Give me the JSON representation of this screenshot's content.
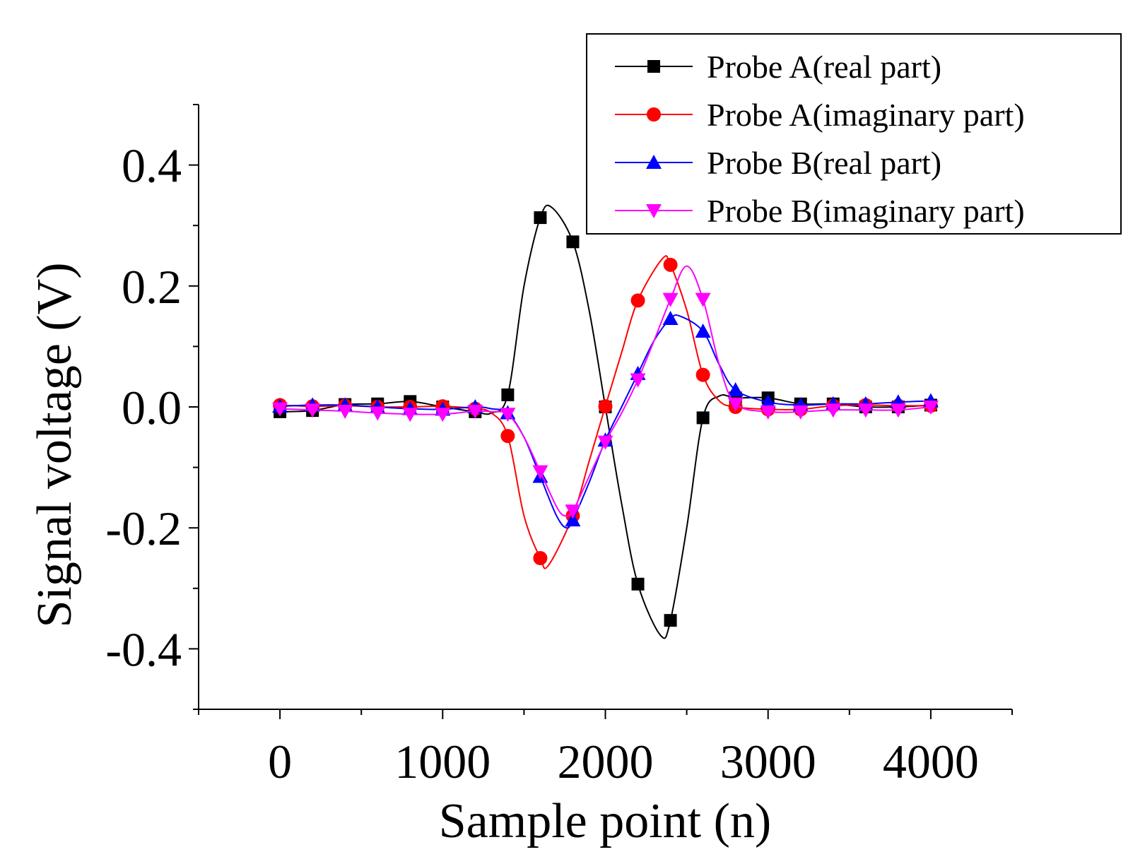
{
  "chart_data": {
    "type": "line",
    "xlabel": "Sample point (n)",
    "ylabel": "Signal voltage (V)",
    "xlim": [
      -500,
      4500
    ],
    "ylim": [
      -0.5,
      0.5
    ],
    "x_ticks": [
      0,
      1000,
      2000,
      3000,
      4000
    ],
    "x_tick_labels": [
      "0",
      "1000",
      "2000",
      "3000",
      "4000"
    ],
    "y_ticks": [
      -0.4,
      -0.2,
      0.0,
      0.2,
      0.4
    ],
    "y_tick_labels": [
      "-0.4",
      "-0.2",
      "0.0",
      "0.2",
      "0.4"
    ],
    "legend_position": "top-right",
    "grid": false,
    "x": [
      0,
      200,
      400,
      600,
      800,
      1000,
      1200,
      1400,
      1600,
      1800,
      2000,
      2200,
      2400,
      2600,
      2800,
      3000,
      3200,
      3400,
      3600,
      3800,
      4000
    ],
    "series": [
      {
        "name": "Probe A(real part)",
        "color": "#000000",
        "marker": "square",
        "values": [
          -0.008,
          -0.006,
          0.004,
          0.005,
          0.009,
          0.0,
          -0.008,
          0.02,
          0.313,
          0.273,
          0.0,
          -0.293,
          -0.353,
          -0.018,
          0.015,
          0.015,
          0.005,
          0.005,
          0.0,
          0.0,
          0.003
        ],
        "curve_nodes": [
          [
            0,
            -0.008
          ],
          [
            200,
            -0.006
          ],
          [
            400,
            0.004
          ],
          [
            600,
            0.005
          ],
          [
            800,
            0.009
          ],
          [
            1000,
            0.0
          ],
          [
            1200,
            -0.008
          ],
          [
            1300,
            -0.01
          ],
          [
            1400,
            0.02
          ],
          [
            1500,
            0.2
          ],
          [
            1600,
            0.313
          ],
          [
            1670,
            0.33
          ],
          [
            1800,
            0.273
          ],
          [
            1900,
            0.16
          ],
          [
            2000,
            0.0
          ],
          [
            2100,
            -0.16
          ],
          [
            2200,
            -0.293
          ],
          [
            2340,
            -0.378
          ],
          [
            2400,
            -0.353
          ],
          [
            2500,
            -0.2
          ],
          [
            2600,
            -0.018
          ],
          [
            2700,
            0.018
          ],
          [
            2800,
            0.015
          ],
          [
            3000,
            0.015
          ],
          [
            3200,
            0.005
          ],
          [
            3400,
            0.005
          ],
          [
            3600,
            0.0
          ],
          [
            3800,
            0.0
          ],
          [
            4000,
            0.003
          ]
        ]
      },
      {
        "name": "Probe A(imaginary part)",
        "color": "#ff0000",
        "marker": "circle",
        "values": [
          0.003,
          0.001,
          0.002,
          0.0,
          0.0,
          0.001,
          -0.003,
          -0.048,
          -0.25,
          -0.18,
          0.001,
          0.176,
          0.235,
          0.053,
          0.0,
          -0.004,
          -0.004,
          0.002,
          0.003,
          0.002,
          0.002
        ],
        "curve_nodes": [
          [
            0,
            0.003
          ],
          [
            200,
            0.001
          ],
          [
            400,
            0.002
          ],
          [
            600,
            0.0
          ],
          [
            800,
            0.0
          ],
          [
            1000,
            0.001
          ],
          [
            1200,
            -0.003
          ],
          [
            1300,
            -0.01
          ],
          [
            1400,
            -0.048
          ],
          [
            1500,
            -0.18
          ],
          [
            1600,
            -0.25
          ],
          [
            1650,
            -0.262
          ],
          [
            1800,
            -0.18
          ],
          [
            1900,
            -0.09
          ],
          [
            2000,
            0.001
          ],
          [
            2100,
            0.09
          ],
          [
            2200,
            0.176
          ],
          [
            2350,
            0.245
          ],
          [
            2400,
            0.235
          ],
          [
            2500,
            0.16
          ],
          [
            2600,
            0.053
          ],
          [
            2700,
            0.01
          ],
          [
            2800,
            0.0
          ],
          [
            3000,
            -0.004
          ],
          [
            3200,
            -0.004
          ],
          [
            3400,
            0.002
          ],
          [
            3600,
            0.003
          ],
          [
            3800,
            0.002
          ],
          [
            4000,
            0.002
          ]
        ]
      },
      {
        "name": "Probe B(real part)",
        "color": "#0000ff",
        "marker": "triangle-up",
        "values": [
          0.001,
          0.003,
          0.003,
          0.0,
          -0.003,
          -0.004,
          0.0,
          -0.01,
          -0.115,
          -0.187,
          -0.055,
          0.055,
          0.146,
          0.125,
          0.028,
          0.008,
          0.003,
          0.005,
          0.005,
          0.008,
          0.01
        ],
        "curve_nodes": [
          [
            0,
            0.001
          ],
          [
            200,
            0.003
          ],
          [
            400,
            0.003
          ],
          [
            600,
            0.0
          ],
          [
            800,
            -0.003
          ],
          [
            1000,
            -0.004
          ],
          [
            1200,
            0.0
          ],
          [
            1300,
            -0.003
          ],
          [
            1400,
            -0.01
          ],
          [
            1500,
            -0.05
          ],
          [
            1600,
            -0.115
          ],
          [
            1700,
            -0.18
          ],
          [
            1760,
            -0.2
          ],
          [
            1800,
            -0.187
          ],
          [
            1900,
            -0.125
          ],
          [
            2000,
            -0.055
          ],
          [
            2100,
            0.0
          ],
          [
            2200,
            0.055
          ],
          [
            2300,
            0.11
          ],
          [
            2400,
            0.146
          ],
          [
            2460,
            0.15
          ],
          [
            2600,
            0.125
          ],
          [
            2700,
            0.07
          ],
          [
            2800,
            0.028
          ],
          [
            3000,
            0.008
          ],
          [
            3200,
            0.003
          ],
          [
            3400,
            0.005
          ],
          [
            3600,
            0.005
          ],
          [
            3800,
            0.008
          ],
          [
            4000,
            0.01
          ]
        ]
      },
      {
        "name": "Probe B(imaginary part)",
        "color": "#ff00ff",
        "marker": "triangle-down",
        "values": [
          -0.003,
          -0.005,
          -0.007,
          -0.01,
          -0.012,
          -0.012,
          -0.007,
          -0.012,
          -0.107,
          -0.172,
          -0.058,
          0.045,
          0.178,
          0.178,
          0.005,
          -0.008,
          -0.008,
          -0.005,
          -0.005,
          -0.005,
          0.0
        ],
        "curve_nodes": [
          [
            0,
            -0.003
          ],
          [
            200,
            -0.005
          ],
          [
            400,
            -0.007
          ],
          [
            600,
            -0.01
          ],
          [
            800,
            -0.012
          ],
          [
            1000,
            -0.012
          ],
          [
            1200,
            -0.007
          ],
          [
            1300,
            -0.008
          ],
          [
            1400,
            -0.012
          ],
          [
            1500,
            -0.05
          ],
          [
            1600,
            -0.107
          ],
          [
            1700,
            -0.165
          ],
          [
            1750,
            -0.18
          ],
          [
            1800,
            -0.172
          ],
          [
            1900,
            -0.115
          ],
          [
            2000,
            -0.058
          ],
          [
            2100,
            -0.01
          ],
          [
            2200,
            0.045
          ],
          [
            2300,
            0.11
          ],
          [
            2400,
            0.178
          ],
          [
            2500,
            0.233
          ],
          [
            2600,
            0.178
          ],
          [
            2700,
            0.07
          ],
          [
            2800,
            0.005
          ],
          [
            3000,
            -0.008
          ],
          [
            3200,
            -0.008
          ],
          [
            3400,
            -0.005
          ],
          [
            3600,
            -0.005
          ],
          [
            3800,
            -0.005
          ],
          [
            4000,
            0.0
          ]
        ]
      }
    ]
  }
}
